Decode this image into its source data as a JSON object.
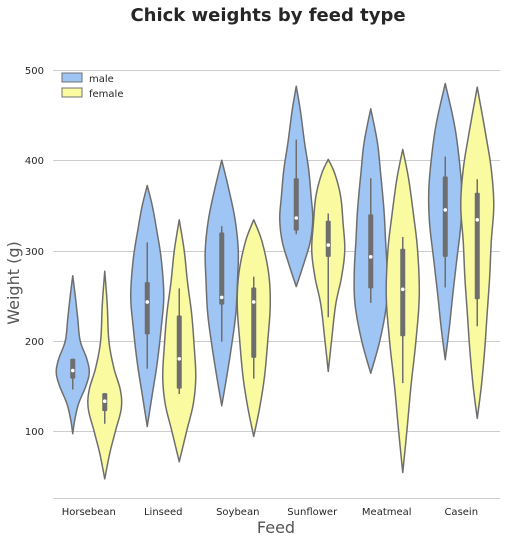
{
  "chart_data": {
    "type": "violin",
    "title": "Chick weights by feed type",
    "xlabel": "Feed",
    "ylabel": "Weight (g)",
    "ylim": [
      25,
      535
    ],
    "yticks": [
      "100",
      "200",
      "300",
      "400",
      "500"
    ],
    "grid": true,
    "legend_position": "top-left",
    "categories": [
      "Horsebean",
      "Linseed",
      "Soybean",
      "Sunflower",
      "Meatmeal",
      "Casein"
    ],
    "series": [
      {
        "name": "male",
        "color": "#9fc5f5",
        "violins": [
          {
            "min": 97,
            "max": 272,
            "q1": 158,
            "median": 167,
            "q3": 180,
            "whisker_low": 146,
            "whisker_high": 180,
            "profile": [
              [
                97,
                0.0
              ],
              [
                112,
                0.12
              ],
              [
                130,
                0.35
              ],
              [
                150,
                0.8
              ],
              [
                165,
                1.0
              ],
              [
                180,
                0.85
              ],
              [
                200,
                0.45
              ],
              [
                225,
                0.3
              ],
              [
                250,
                0.15
              ],
              [
                272,
                0.0
              ]
            ]
          },
          {
            "min": 105,
            "max": 372,
            "q1": 207,
            "median": 243,
            "q3": 265,
            "whisker_low": 169,
            "whisker_high": 309,
            "profile": [
              [
                105,
                0.0
              ],
              [
                140,
                0.3
              ],
              [
                175,
                0.6
              ],
              [
                215,
                0.85
              ],
              [
                250,
                1.0
              ],
              [
                290,
                0.85
              ],
              [
                325,
                0.55
              ],
              [
                350,
                0.3
              ],
              [
                372,
                0.0
              ]
            ]
          },
          {
            "min": 128,
            "max": 400,
            "q1": 240,
            "median": 248,
            "q3": 320,
            "whisker_low": 199,
            "whisker_high": 327,
            "profile": [
              [
                128,
                0.0
              ],
              [
                160,
                0.3
              ],
              [
                195,
                0.6
              ],
              [
                230,
                0.85
              ],
              [
                265,
                0.95
              ],
              [
                300,
                1.0
              ],
              [
                335,
                0.8
              ],
              [
                370,
                0.4
              ],
              [
                400,
                0.0
              ]
            ]
          },
          {
            "min": 260,
            "max": 482,
            "q1": 322,
            "median": 336,
            "q3": 380,
            "whisker_low": 318,
            "whisker_high": 423,
            "profile": [
              [
                260,
                0.0
              ],
              [
                285,
                0.45
              ],
              [
                310,
                0.85
              ],
              [
                335,
                1.0
              ],
              [
                360,
                0.9
              ],
              [
                390,
                0.75
              ],
              [
                420,
                0.5
              ],
              [
                455,
                0.25
              ],
              [
                482,
                0.0
              ]
            ]
          },
          {
            "min": 164,
            "max": 457,
            "q1": 258,
            "median": 293,
            "q3": 340,
            "whisker_low": 242,
            "whisker_high": 380,
            "profile": [
              [
                164,
                0.0
              ],
              [
                200,
                0.55
              ],
              [
                240,
                0.95
              ],
              [
                275,
                1.0
              ],
              [
                310,
                0.9
              ],
              [
                345,
                0.8
              ],
              [
                385,
                0.6
              ],
              [
                420,
                0.4
              ],
              [
                457,
                0.0
              ]
            ]
          },
          {
            "min": 179,
            "max": 485,
            "q1": 293,
            "median": 345,
            "q3": 382,
            "whisker_low": 259,
            "whisker_high": 404,
            "profile": [
              [
                179,
                0.0
              ],
              [
                215,
                0.25
              ],
              [
                250,
                0.45
              ],
              [
                290,
                0.7
              ],
              [
                330,
                0.95
              ],
              [
                365,
                1.0
              ],
              [
                400,
                0.85
              ],
              [
                440,
                0.55
              ],
              [
                485,
                0.0
              ]
            ]
          }
        ]
      },
      {
        "name": "female",
        "color": "#fafaa0",
        "violins": [
          {
            "min": 47,
            "max": 277,
            "q1": 122,
            "median": 133,
            "q3": 142,
            "whisker_low": 108,
            "whisker_high": 142,
            "profile": [
              [
                47,
                0.0
              ],
              [
                75,
                0.3
              ],
              [
                100,
                0.65
              ],
              [
                125,
                1.0
              ],
              [
                145,
                0.95
              ],
              [
                170,
                0.55
              ],
              [
                200,
                0.25
              ],
              [
                240,
                0.15
              ],
              [
                277,
                0.0
              ]
            ]
          },
          {
            "min": 66,
            "max": 334,
            "q1": 147,
            "median": 180,
            "q3": 228,
            "whisker_low": 141,
            "whisker_high": 258,
            "profile": [
              [
                66,
                0.0
              ],
              [
                100,
                0.45
              ],
              [
                130,
                0.85
              ],
              [
                160,
                1.0
              ],
              [
                195,
                0.9
              ],
              [
                230,
                0.75
              ],
              [
                265,
                0.5
              ],
              [
                300,
                0.3
              ],
              [
                334,
                0.0
              ]
            ]
          },
          {
            "min": 94,
            "max": 334,
            "q1": 181,
            "median": 243,
            "q3": 259,
            "whisker_low": 158,
            "whisker_high": 271,
            "profile": [
              [
                94,
                0.0
              ],
              [
                125,
                0.35
              ],
              [
                160,
                0.65
              ],
              [
                200,
                0.85
              ],
              [
                240,
                1.0
              ],
              [
                275,
                0.9
              ],
              [
                310,
                0.5
              ],
              [
                334,
                0.0
              ]
            ]
          },
          {
            "min": 166,
            "max": 401,
            "q1": 293,
            "median": 306,
            "q3": 333,
            "whisker_low": 226,
            "whisker_high": 341,
            "profile": [
              [
                166,
                0.0
              ],
              [
                200,
                0.2
              ],
              [
                240,
                0.45
              ],
              [
                270,
                0.8
              ],
              [
                300,
                1.0
              ],
              [
                330,
                0.9
              ],
              [
                360,
                0.75
              ],
              [
                385,
                0.4
              ],
              [
                401,
                0.0
              ]
            ]
          },
          {
            "min": 54,
            "max": 412,
            "q1": 205,
            "median": 257,
            "q3": 302,
            "whisker_low": 153,
            "whisker_high": 315,
            "profile": [
              [
                54,
                0.0
              ],
              [
                100,
                0.25
              ],
              [
                150,
                0.5
              ],
              [
                200,
                0.8
              ],
              [
                250,
                1.0
              ],
              [
                300,
                0.9
              ],
              [
                340,
                0.65
              ],
              [
                380,
                0.35
              ],
              [
                412,
                0.0
              ]
            ]
          },
          {
            "min": 114,
            "max": 481,
            "q1": 246,
            "median": 334,
            "q3": 364,
            "whisker_low": 216,
            "whisker_high": 379,
            "profile": [
              [
                114,
                0.0
              ],
              [
                150,
                0.25
              ],
              [
                190,
                0.45
              ],
              [
                230,
                0.6
              ],
              [
                270,
                0.75
              ],
              [
                310,
                0.85
              ],
              [
                350,
                1.0
              ],
              [
                390,
                0.85
              ],
              [
                430,
                0.5
              ],
              [
                481,
                0.0
              ]
            ]
          }
        ]
      }
    ]
  }
}
